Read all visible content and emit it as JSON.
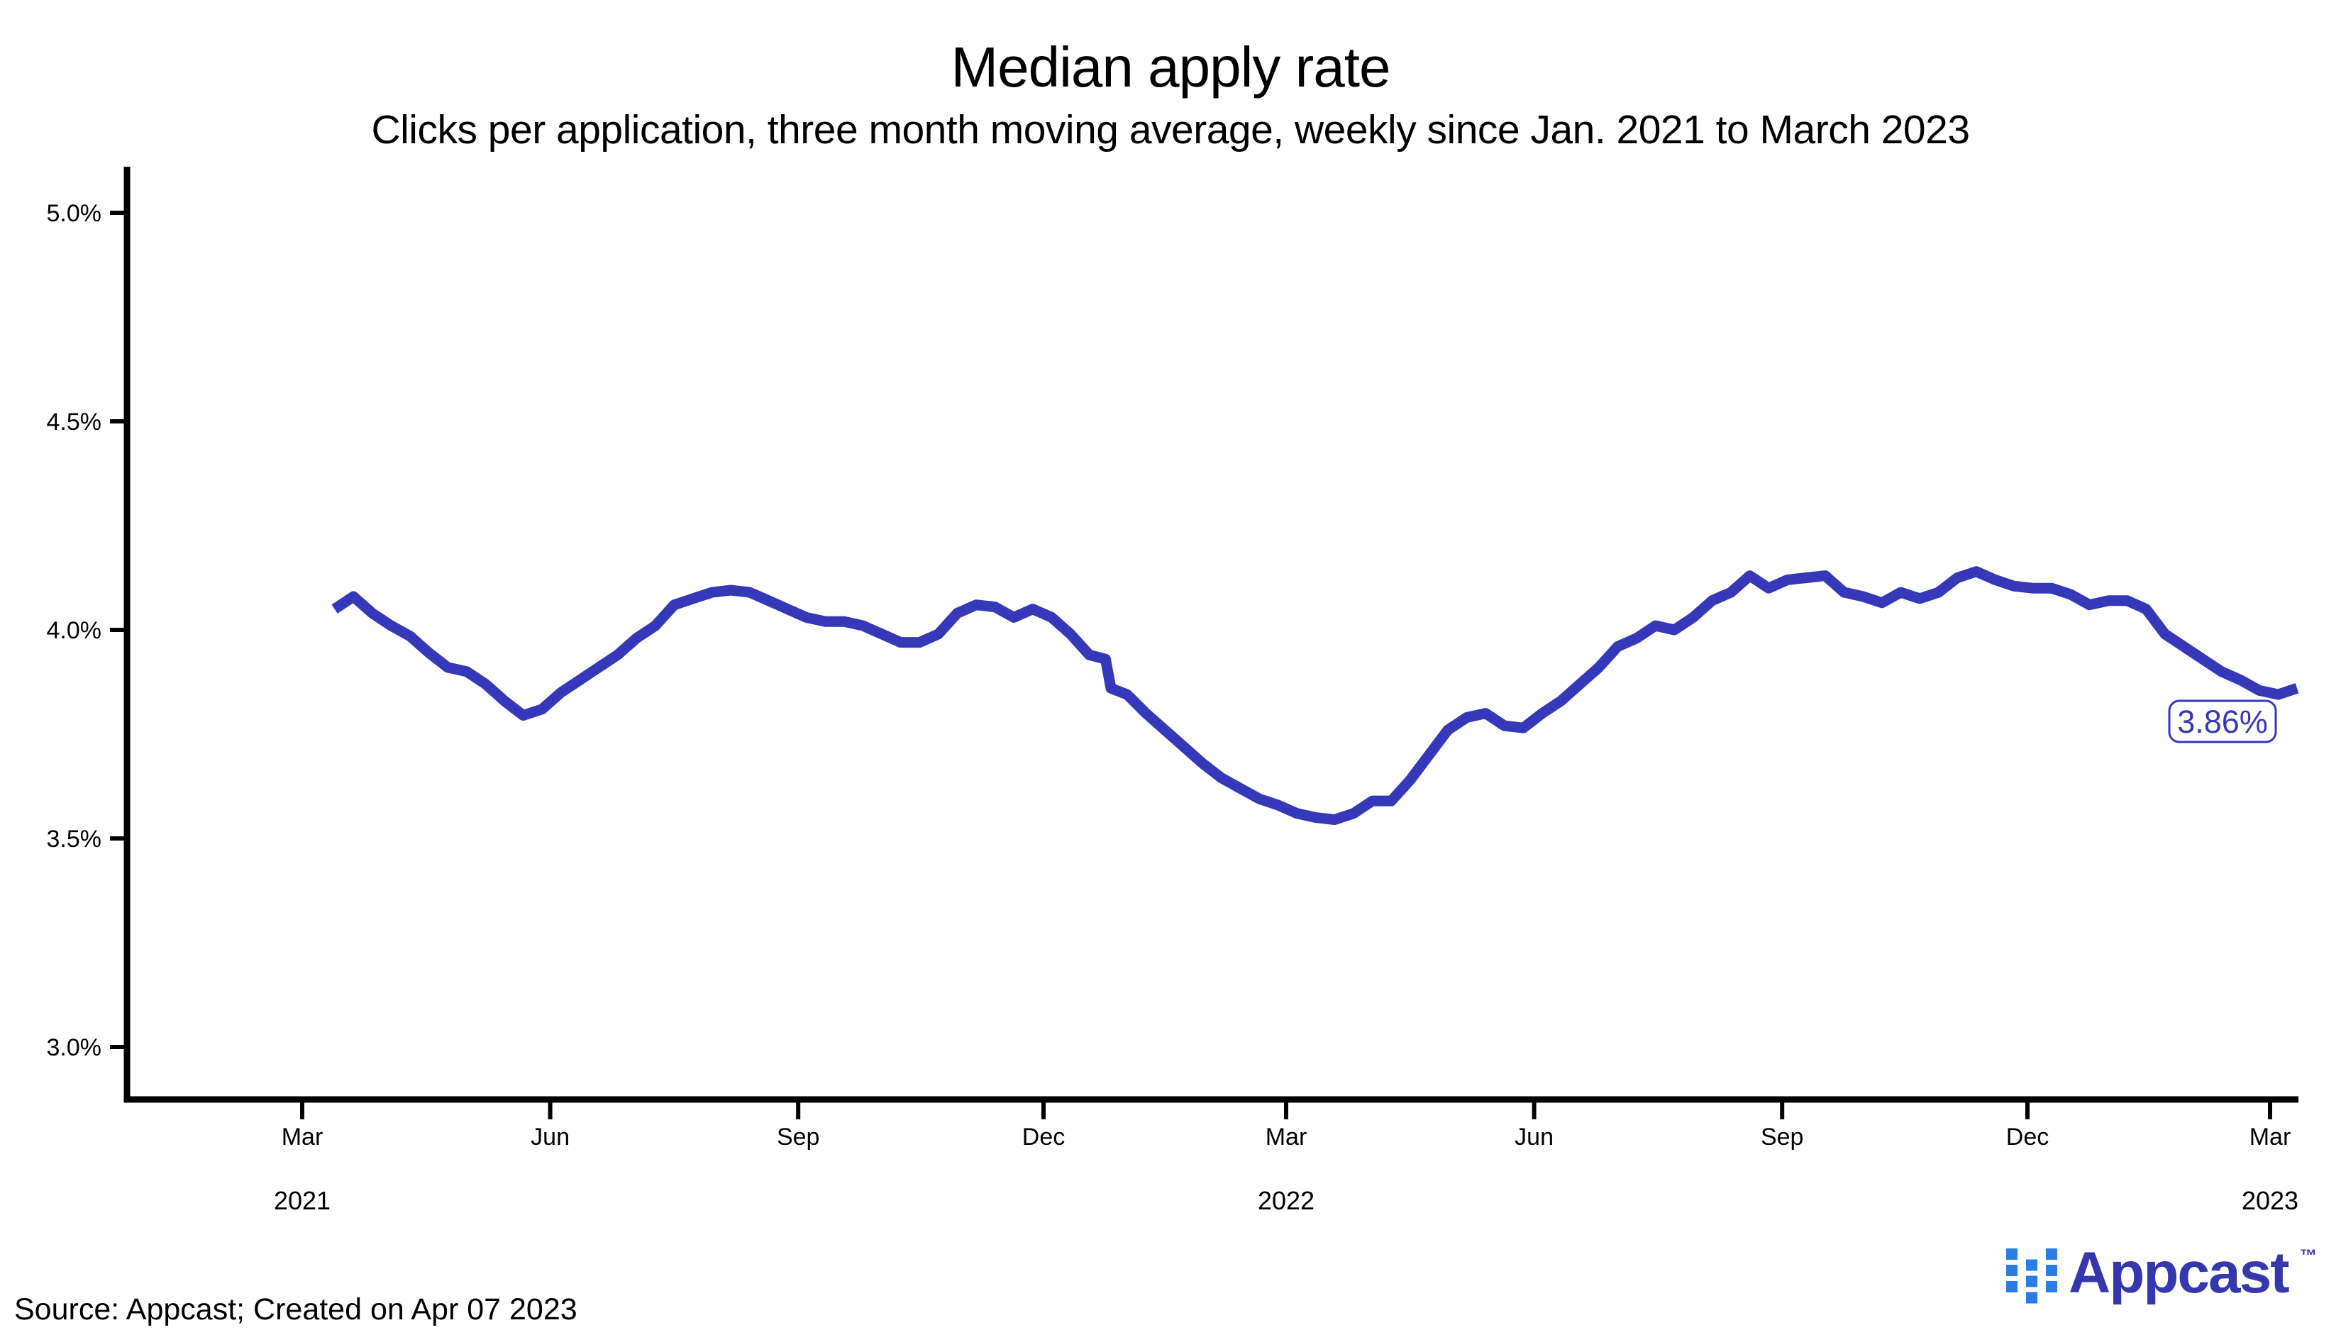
{
  "header": {
    "title": "Median apply rate",
    "subtitle": "Clicks per application, three month moving average, weekly since Jan. 2021 to March 2023"
  },
  "colors": {
    "line": "#3538b8",
    "axis": "#000000",
    "background": "#ffffff"
  },
  "chart_data": {
    "type": "line",
    "title": "Median apply rate",
    "subtitle": "Clicks per application, three month moving average, weekly since Jan. 2021 to March 2023",
    "xlabel": "",
    "ylabel": "",
    "unit": "percent",
    "grid": "off",
    "legend": "none",
    "y_axis": {
      "range": [
        2.94,
        5.11
      ],
      "ticks": [
        {
          "value": 5.0,
          "label": "5.0%"
        },
        {
          "value": 4.5,
          "label": "4.5%"
        },
        {
          "value": 4.0,
          "label": "4.0%"
        },
        {
          "value": 3.5,
          "label": "3.5%"
        },
        {
          "value": 3.0,
          "label": "3.0%"
        }
      ]
    },
    "x_axis": {
      "range": [
        "2020-12-26",
        "2023-03-12"
      ],
      "ticks": [
        {
          "date": "2021-03-01",
          "label": "Mar"
        },
        {
          "date": "2021-06-01",
          "label": "Jun"
        },
        {
          "date": "2021-09-01",
          "label": "Sep"
        },
        {
          "date": "2021-12-01",
          "label": "Dec"
        },
        {
          "date": "2022-03-01",
          "label": "Mar"
        },
        {
          "date": "2022-06-01",
          "label": "Jun"
        },
        {
          "date": "2022-09-01",
          "label": "Sep"
        },
        {
          "date": "2022-12-01",
          "label": "Dec"
        },
        {
          "date": "2023-03-01",
          "label": "Mar"
        }
      ],
      "year_labels": [
        {
          "date": "2021-03-01",
          "label": "2021"
        },
        {
          "date": "2022-03-01",
          "label": "2022"
        },
        {
          "date": "2023-03-01",
          "label": "2023"
        }
      ]
    },
    "end_label": {
      "text": "3.86%",
      "value": 3.86
    },
    "series": [
      {
        "name": "Median apply rate (3-month moving average)",
        "color": "#3538b8",
        "points": [
          [
            "2021-03-13",
            4.05
          ],
          [
            "2021-03-20",
            4.08
          ],
          [
            "2021-03-27",
            4.04
          ],
          [
            "2021-04-03",
            4.01
          ],
          [
            "2021-04-10",
            3.985
          ],
          [
            "2021-04-17",
            3.945
          ],
          [
            "2021-04-24",
            3.91
          ],
          [
            "2021-05-01",
            3.9
          ],
          [
            "2021-05-08",
            3.87
          ],
          [
            "2021-05-15",
            3.83
          ],
          [
            "2021-05-22",
            3.795
          ],
          [
            "2021-05-29",
            3.81
          ],
          [
            "2021-06-05",
            3.85
          ],
          [
            "2021-06-12",
            3.88
          ],
          [
            "2021-06-19",
            3.91
          ],
          [
            "2021-06-26",
            3.94
          ],
          [
            "2021-07-03",
            3.98
          ],
          [
            "2021-07-10",
            4.01
          ],
          [
            "2021-07-17",
            4.06
          ],
          [
            "2021-07-24",
            4.075
          ],
          [
            "2021-07-31",
            4.09
          ],
          [
            "2021-08-07",
            4.095
          ],
          [
            "2021-08-14",
            4.09
          ],
          [
            "2021-08-21",
            4.07
          ],
          [
            "2021-08-28",
            4.05
          ],
          [
            "2021-09-04",
            4.03
          ],
          [
            "2021-09-11",
            4.02
          ],
          [
            "2021-09-18",
            4.02
          ],
          [
            "2021-09-25",
            4.01
          ],
          [
            "2021-10-02",
            3.99
          ],
          [
            "2021-10-09",
            3.97
          ],
          [
            "2021-10-16",
            3.97
          ],
          [
            "2021-10-23",
            3.99
          ],
          [
            "2021-10-30",
            4.04
          ],
          [
            "2021-11-06",
            4.06
          ],
          [
            "2021-11-13",
            4.055
          ],
          [
            "2021-11-20",
            4.03
          ],
          [
            "2021-11-27",
            4.05
          ],
          [
            "2021-12-04",
            4.03
          ],
          [
            "2021-12-11",
            3.99
          ],
          [
            "2021-12-18",
            3.94
          ],
          [
            "2021-12-24",
            3.93
          ],
          [
            "2021-12-26",
            3.86
          ],
          [
            "2022-01-01",
            3.845
          ],
          [
            "2022-01-08",
            3.8
          ],
          [
            "2022-01-15",
            3.76
          ],
          [
            "2022-01-22",
            3.72
          ],
          [
            "2022-01-29",
            3.68
          ],
          [
            "2022-02-05",
            3.645
          ],
          [
            "2022-02-12",
            3.62
          ],
          [
            "2022-02-19",
            3.595
          ],
          [
            "2022-02-26",
            3.58
          ],
          [
            "2022-03-05",
            3.56
          ],
          [
            "2022-03-12",
            3.55
          ],
          [
            "2022-03-19",
            3.545
          ],
          [
            "2022-03-26",
            3.56
          ],
          [
            "2022-04-02",
            3.59
          ],
          [
            "2022-04-09",
            3.59
          ],
          [
            "2022-04-16",
            3.64
          ],
          [
            "2022-04-23",
            3.7
          ],
          [
            "2022-04-30",
            3.76
          ],
          [
            "2022-05-07",
            3.79
          ],
          [
            "2022-05-14",
            3.8
          ],
          [
            "2022-05-21",
            3.77
          ],
          [
            "2022-05-28",
            3.765
          ],
          [
            "2022-06-04",
            3.8
          ],
          [
            "2022-06-11",
            3.83
          ],
          [
            "2022-06-18",
            3.87
          ],
          [
            "2022-06-25",
            3.91
          ],
          [
            "2022-07-02",
            3.96
          ],
          [
            "2022-07-09",
            3.98
          ],
          [
            "2022-07-16",
            4.01
          ],
          [
            "2022-07-23",
            4.0
          ],
          [
            "2022-07-30",
            4.03
          ],
          [
            "2022-08-06",
            4.07
          ],
          [
            "2022-08-13",
            4.09
          ],
          [
            "2022-08-20",
            4.13
          ],
          [
            "2022-08-27",
            4.1
          ],
          [
            "2022-09-03",
            4.12
          ],
          [
            "2022-09-10",
            4.125
          ],
          [
            "2022-09-17",
            4.13
          ],
          [
            "2022-09-24",
            4.09
          ],
          [
            "2022-10-01",
            4.08
          ],
          [
            "2022-10-08",
            4.065
          ],
          [
            "2022-10-15",
            4.09
          ],
          [
            "2022-10-22",
            4.075
          ],
          [
            "2022-10-29",
            4.09
          ],
          [
            "2022-11-05",
            4.125
          ],
          [
            "2022-11-12",
            4.14
          ],
          [
            "2022-11-19",
            4.12
          ],
          [
            "2022-11-26",
            4.105
          ],
          [
            "2022-12-03",
            4.1
          ],
          [
            "2022-12-10",
            4.1
          ],
          [
            "2022-12-17",
            4.085
          ],
          [
            "2022-12-24",
            4.06
          ],
          [
            "2022-12-31",
            4.07
          ],
          [
            "2023-01-07",
            4.07
          ],
          [
            "2023-01-14",
            4.05
          ],
          [
            "2023-01-21",
            3.99
          ],
          [
            "2023-01-28",
            3.96
          ],
          [
            "2023-02-04",
            3.93
          ],
          [
            "2023-02-11",
            3.9
          ],
          [
            "2023-02-18",
            3.88
          ],
          [
            "2023-02-25",
            3.855
          ],
          [
            "2023-03-04",
            3.845
          ],
          [
            "2023-03-11",
            3.86
          ]
        ]
      }
    ]
  },
  "footer": {
    "source": "Source: Appcast; Created on Apr 07 2023",
    "logo": {
      "text": "Appcast",
      "tm": "™",
      "square_color": "#2b7ce5",
      "text_color": "#3537ad"
    }
  }
}
